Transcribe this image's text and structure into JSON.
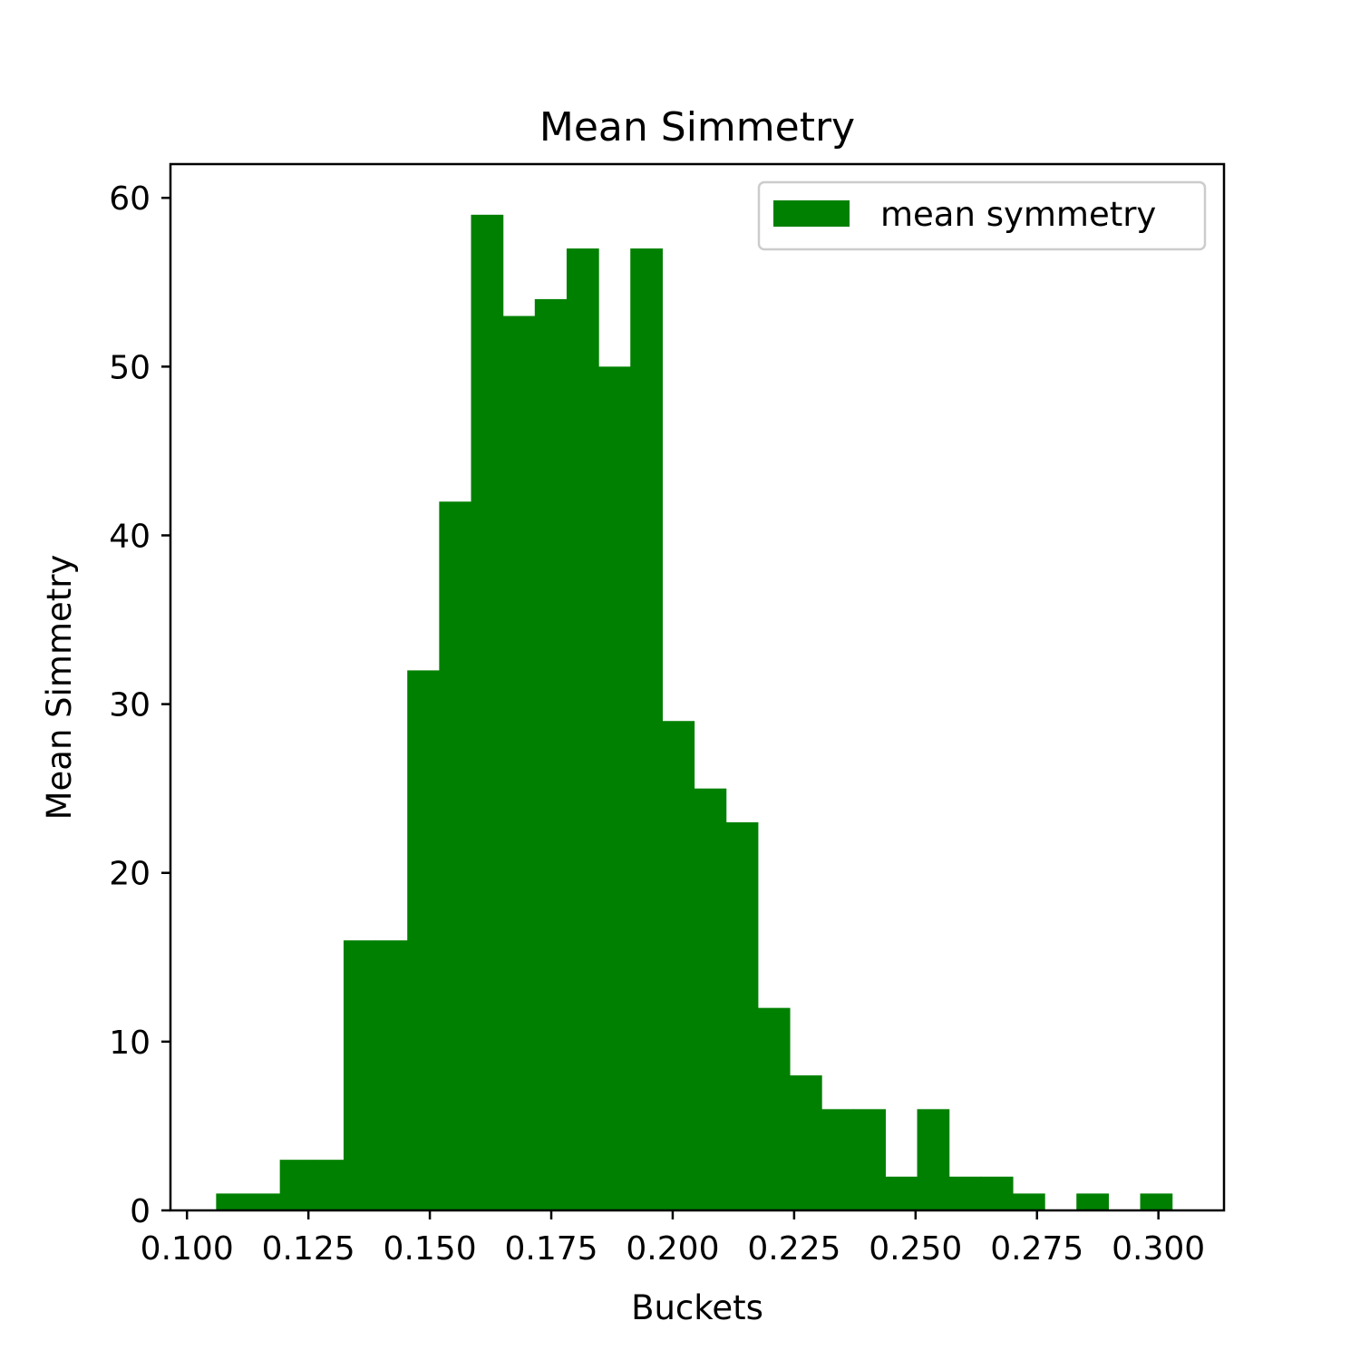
{
  "chart_data": {
    "type": "bar",
    "title": "Mean Simmetry",
    "xlabel": "Buckets",
    "ylabel": "Mean Simmetry",
    "xlim": [
      0.0966,
      0.3135
    ],
    "ylim": [
      0,
      62
    ],
    "xticks": [
      "0.100",
      "0.125",
      "0.150",
      "0.175",
      "0.200",
      "0.225",
      "0.250",
      "0.275",
      "0.300"
    ],
    "yticks": [
      "0",
      "10",
      "20",
      "30",
      "40",
      "50",
      "60"
    ],
    "bin_start": 0.106,
    "bin_width": 0.00656,
    "values": [
      1,
      1,
      3,
      3,
      16,
      16,
      32,
      42,
      59,
      53,
      54,
      57,
      50,
      57,
      29,
      25,
      23,
      12,
      8,
      6,
      6,
      2,
      6,
      2,
      2,
      1,
      0,
      1,
      0,
      1
    ],
    "series": [
      {
        "name": "mean symmetry",
        "color": "#008000"
      }
    ],
    "legend_position": "top-right",
    "grid": false
  }
}
